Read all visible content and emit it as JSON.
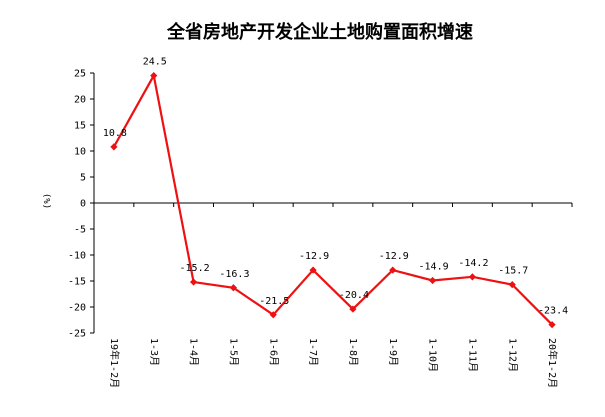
{
  "chart_data": {
    "type": "line",
    "title": "全省房地产开发企业土地购置面积增速",
    "ylabel": "(%)",
    "xlabel": "",
    "ylim": [
      -25,
      25
    ],
    "yticks": [
      25,
      20,
      15,
      10,
      5,
      0,
      -5,
      -10,
      -15,
      -20,
      -25
    ],
    "categories": [
      "19年1-2月",
      "1-3月",
      "1-4月",
      "1-5月",
      "1-6月",
      "1-7月",
      "1-8月",
      "1-9月",
      "1-10月",
      "1-11月",
      "1-12月",
      "20年1-2月"
    ],
    "series": [
      {
        "values": [
          10.8,
          24.5,
          -15.2,
          -16.3,
          -21.5,
          -12.9,
          -20.4,
          -12.9,
          -14.9,
          -14.2,
          -15.7,
          -23.4
        ],
        "color": "#ee1111",
        "marker": "diamond"
      }
    ],
    "data_labels": [
      "10.8",
      "24.5",
      "-15.2",
      "-16.3",
      "-21.5",
      "-12.9",
      "-20.4",
      "-12.9",
      "-14.9",
      "-14.2",
      "-15.7",
      "-23.4"
    ],
    "grid": false,
    "legend": "none"
  }
}
